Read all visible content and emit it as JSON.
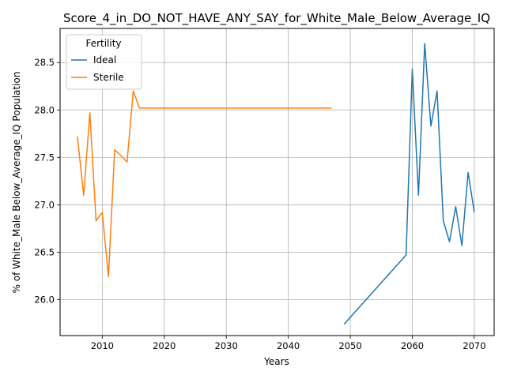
{
  "chart_data": {
    "type": "line",
    "title": "Score_4_in_DO_NOT_HAVE_ANY_SAY_for_White_Male_Below_Average_IQ",
    "xlabel": "Years",
    "ylabel": "% of White_Male Below_Average_IQ Population",
    "xlim": [
      2003.2,
      2073.2
    ],
    "ylim": [
      25.62,
      28.86
    ],
    "xticks": [
      2010,
      2020,
      2030,
      2040,
      2050,
      2060,
      2070
    ],
    "yticks": [
      26.0,
      26.5,
      27.0,
      27.5,
      28.0,
      28.5
    ],
    "xtick_labels": [
      "2010",
      "2020",
      "2030",
      "2040",
      "2050",
      "2060",
      "2070"
    ],
    "ytick_labels": [
      "26.0",
      "26.5",
      "27.0",
      "27.5",
      "28.0",
      "28.5"
    ],
    "grid": true,
    "legend": {
      "title": "Fertility",
      "position": "top-left"
    },
    "series": [
      {
        "name": "Ideal",
        "color": "#1f77b4",
        "x": [
          2049,
          2059,
          2060,
          2061,
          2062,
          2063,
          2064,
          2065,
          2066,
          2067,
          2068,
          2069,
          2070
        ],
        "y": [
          25.74,
          26.47,
          28.43,
          27.1,
          28.7,
          27.83,
          28.2,
          26.83,
          26.61,
          26.98,
          26.57,
          27.34,
          26.92
        ]
      },
      {
        "name": "Sterile",
        "color": "#ff7f0e",
        "x": [
          2006,
          2007,
          2008,
          2009,
          2010,
          2011,
          2012,
          2013,
          2014,
          2015,
          2016,
          2047
        ],
        "y": [
          27.72,
          27.1,
          27.97,
          26.83,
          26.92,
          26.24,
          27.58,
          27.52,
          27.45,
          28.2,
          28.02,
          28.02
        ]
      }
    ]
  }
}
